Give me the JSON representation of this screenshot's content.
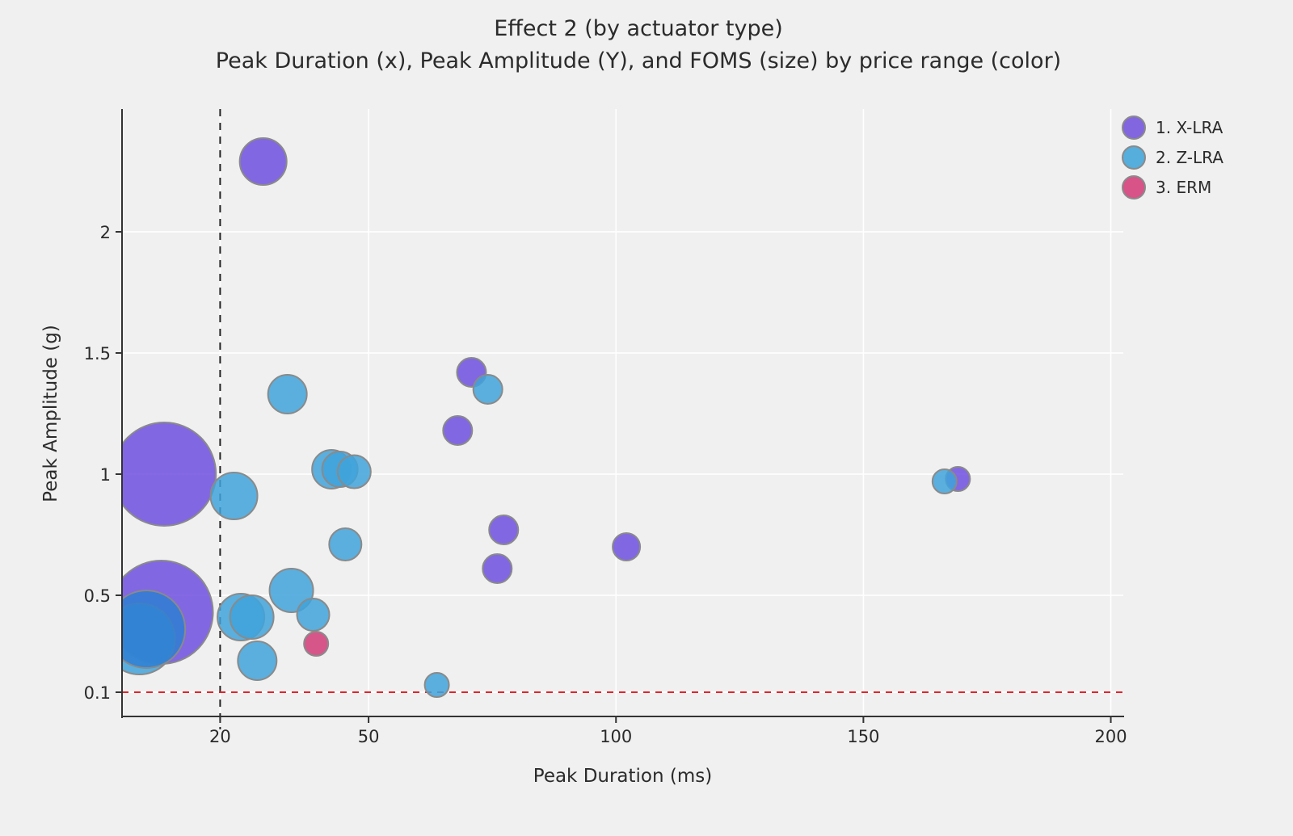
{
  "title": {
    "line1": "Effect 2 (by actuator type)",
    "line2": "Peak Duration (x), Peak Amplitude (Y), and FOMS (size) by price range (color)"
  },
  "axes": {
    "x": {
      "label": "Peak Duration (ms)",
      "tick_labels": [
        "20",
        "50",
        "100",
        "150",
        "200"
      ],
      "tick_values": [
        20,
        50,
        100,
        150,
        200
      ],
      "range": [
        0,
        202.5
      ]
    },
    "y": {
      "label": "Peak Amplitude (g)",
      "tick_labels": [
        "0.1",
        "0.5",
        "1",
        "1.5",
        "2"
      ],
      "tick_values": [
        0.1,
        0.5,
        1,
        1.5,
        2
      ],
      "range": [
        0,
        2.507
      ]
    }
  },
  "legend": {
    "items": [
      {
        "label": "1. X-LRA",
        "color": "#8266DF"
      },
      {
        "label": "2. Z-LRA",
        "color": "#55AEDB"
      },
      {
        "label": "3. ERM",
        "color": "#D85387"
      }
    ]
  },
  "reference_lines": {
    "vline_x": 20,
    "vline_color": "#222222",
    "hline_y": 0.1,
    "hline_color": "#e3242b"
  },
  "style": {
    "background": "#f0f0f0",
    "gridline_color": "#ffffff",
    "axis_color": "#333333",
    "bubble_edge_color": "#8a8a8a",
    "purple_fill": "#6F4FE0",
    "blue_fill": "#3FA3DA",
    "pink_fill": "#D23B77",
    "fill_opacity": 0.85
  },
  "chart_data": {
    "type": "scatter",
    "subtype": "bubble",
    "title": "Effect 2 (by actuator type)",
    "xlabel": "Peak Duration (ms)",
    "ylabel": "Peak Amplitude (g)",
    "size_encodes": "FOMS",
    "grid": true,
    "legend_position": "top-right",
    "series": [
      {
        "name": "1. X-LRA",
        "color": "#6F4FE0",
        "points": [
          {
            "x": 8.7,
            "y": 1.0,
            "r": 64
          },
          {
            "x": 8.1,
            "y": 0.43,
            "r": 64
          },
          {
            "x": 28.7,
            "y": 2.29,
            "r": 29
          },
          {
            "x": 70.8,
            "y": 1.42,
            "r": 18
          },
          {
            "x": 68.0,
            "y": 1.18,
            "r": 18
          },
          {
            "x": 77.3,
            "y": 0.77,
            "r": 18
          },
          {
            "x": 76.0,
            "y": 0.61,
            "r": 18
          },
          {
            "x": 102.1,
            "y": 0.7,
            "r": 17
          },
          {
            "x": 169.1,
            "y": 0.98,
            "r": 15
          }
        ]
      },
      {
        "name": "2. Z-LRA",
        "color": "#3FA3DA",
        "points": [
          {
            "x": 3.7,
            "y": 0.32,
            "r": 44
          },
          {
            "x": 5.1,
            "y": 0.36,
            "r": 48,
            "color": "#2F7FD2"
          },
          {
            "x": 22.8,
            "y": 0.91,
            "r": 29
          },
          {
            "x": 24.2,
            "y": 0.41,
            "r": 29
          },
          {
            "x": 26.4,
            "y": 0.41,
            "r": 27
          },
          {
            "x": 34.4,
            "y": 0.52,
            "r": 27
          },
          {
            "x": 38.8,
            "y": 0.42,
            "r": 20
          },
          {
            "x": 27.5,
            "y": 0.23,
            "r": 24
          },
          {
            "x": 33.6,
            "y": 1.33,
            "r": 24
          },
          {
            "x": 42.5,
            "y": 1.02,
            "r": 24
          },
          {
            "x": 44.2,
            "y": 1.02,
            "r": 22
          },
          {
            "x": 47.1,
            "y": 1.01,
            "r": 20.5
          },
          {
            "x": 45.3,
            "y": 0.71,
            "r": 20
          },
          {
            "x": 63.8,
            "y": 0.13,
            "r": 15
          },
          {
            "x": 74.1,
            "y": 1.35,
            "r": 18
          },
          {
            "x": 166.4,
            "y": 0.97,
            "r": 15
          }
        ]
      },
      {
        "name": "3. ERM",
        "color": "#D23B77",
        "points": [
          {
            "x": 39.4,
            "y": 0.3,
            "r": 15
          }
        ]
      }
    ]
  }
}
